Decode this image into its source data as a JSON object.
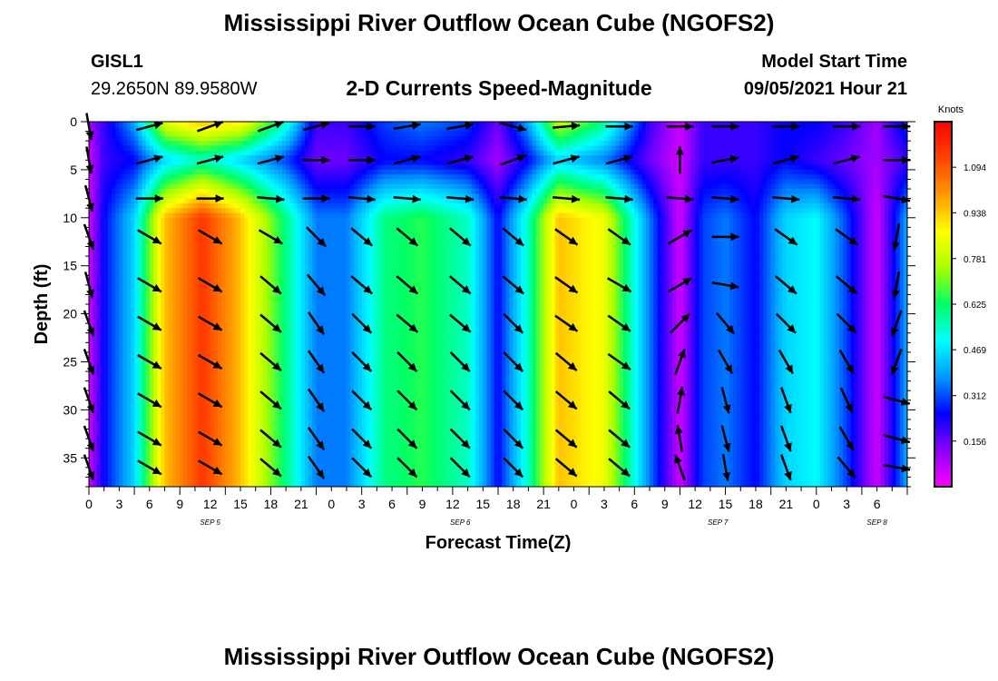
{
  "header": {
    "title": "Mississippi River Outflow Ocean Cube (NGOFS2)",
    "station_id": "GISL1",
    "station_coords": "29.2650N  89.9580W",
    "plot_title": "2-D Currents Speed-Magnitude",
    "model_start_label": "Model Start Time",
    "model_start_value": "09/05/2021 Hour 21"
  },
  "footer": {
    "title": "Mississippi River Outflow Ocean Cube (NGOFS2)"
  },
  "chart_data": {
    "type": "heatmap",
    "xlabel": "Forecast Time(Z)",
    "ylabel": "Depth (ft)",
    "xlim": [
      0,
      54
    ],
    "ylim": [
      0,
      38
    ],
    "y_inverted": true,
    "x_tick_labels": [
      "0",
      "3",
      "6",
      "9",
      "12",
      "15",
      "18",
      "21",
      "0",
      "3",
      "6",
      "9",
      "12",
      "15",
      "18",
      "21",
      "0",
      "3",
      "6",
      "9",
      "12",
      "15",
      "18",
      "21",
      "0",
      "3",
      "6"
    ],
    "y_ticks": [
      0,
      5,
      10,
      15,
      20,
      25,
      30,
      35
    ],
    "date_labels": [
      {
        "label": "SEP 5",
        "x": 8
      },
      {
        "label": "SEP 6",
        "x": 24.5
      },
      {
        "label": "SEP 7",
        "x": 41.5
      },
      {
        "label": "SEP 8",
        "x": 52
      }
    ],
    "colorbar": {
      "unit": "Knots",
      "min": 0,
      "max": 1.25,
      "ticks": [
        1.094,
        0.938,
        0.781,
        0.625,
        0.469,
        0.312,
        0.156
      ],
      "tick_labels": [
        "1.094",
        "0.938",
        "0.781",
        "0.625",
        "0.469",
        "0.312",
        "0.156"
      ],
      "colors": [
        "#ff00ff",
        "#8a00ff",
        "#0000ff",
        "#0099ff",
        "#00ffff",
        "#00ff66",
        "#aaff00",
        "#ffff00",
        "#ff9900",
        "#ff4400",
        "#ff0000"
      ]
    },
    "speed_profile": {
      "times": [
        0,
        1,
        3,
        5,
        7.5,
        10,
        13,
        15,
        17,
        19.5,
        22,
        25,
        27,
        29,
        31,
        34,
        37,
        39,
        40.5,
        42,
        44,
        46,
        48,
        50,
        52,
        54
      ],
      "surface": [
        0.1,
        0.2,
        0.4,
        0.85,
        0.95,
        0.9,
        0.55,
        0.2,
        0.2,
        0.3,
        0.35,
        0.3,
        0.15,
        0.4,
        0.8,
        0.6,
        0.2,
        0.05,
        0.2,
        0.2,
        0.2,
        0.25,
        0.25,
        0.2,
        0.1,
        0.3
      ],
      "mid": [
        0.05,
        0.2,
        0.25,
        0.45,
        0.55,
        0.45,
        0.3,
        0.15,
        0.15,
        0.25,
        0.25,
        0.2,
        0.1,
        0.25,
        0.45,
        0.35,
        0.15,
        0.05,
        0.2,
        0.2,
        0.2,
        0.25,
        0.2,
        0.15,
        0.1,
        0.2
      ],
      "deep": [
        0.05,
        0.25,
        0.45,
        0.95,
        1.15,
        0.95,
        0.6,
        0.35,
        0.35,
        0.6,
        0.65,
        0.55,
        0.25,
        0.55,
        0.95,
        0.85,
        0.35,
        0.05,
        0.3,
        0.35,
        0.25,
        0.45,
        0.5,
        0.3,
        0.05,
        0.4
      ]
    },
    "vectors": {
      "times": [
        0,
        4,
        8,
        12,
        15,
        18,
        21,
        24.5,
        28,
        31.5,
        35,
        39,
        42,
        46,
        50,
        53.3
      ],
      "depths": [
        0.5,
        4,
        8,
        12,
        17,
        21,
        25,
        29,
        33,
        36
      ],
      "directions_deg": [
        [
          -80,
          15,
          20,
          20,
          15,
          0,
          10,
          10,
          -15,
          5,
          0,
          0,
          0,
          0,
          0,
          0
        ],
        [
          -80,
          15,
          15,
          15,
          0,
          0,
          15,
          15,
          20,
          15,
          15,
          90,
          10,
          15,
          15,
          0
        ],
        [
          -75,
          0,
          0,
          -5,
          0,
          -5,
          -5,
          -5,
          -5,
          -5,
          -5,
          -5,
          -5,
          -5,
          -5,
          -10
        ],
        [
          -70,
          -30,
          -30,
          -30,
          -45,
          -40,
          -40,
          -40,
          -40,
          -35,
          -35,
          30,
          0,
          -35,
          -35,
          -100
        ],
        [
          -75,
          -30,
          -30,
          -40,
          -50,
          -40,
          -40,
          -40,
          -40,
          -35,
          -30,
          30,
          -10,
          -40,
          -40,
          -100
        ],
        [
          -70,
          -30,
          -30,
          -40,
          -55,
          -45,
          -40,
          -40,
          -45,
          -35,
          -35,
          45,
          -50,
          -45,
          -45,
          -110
        ],
        [
          -70,
          -30,
          -30,
          -40,
          -55,
          -45,
          -45,
          -45,
          -45,
          -40,
          -35,
          70,
          -60,
          -60,
          -60,
          -110
        ],
        [
          -70,
          -30,
          -30,
          -40,
          -55,
          -45,
          -45,
          -45,
          -45,
          -40,
          -40,
          80,
          -75,
          -70,
          -65,
          -15
        ],
        [
          -70,
          -30,
          -30,
          -40,
          -55,
          -45,
          -45,
          -45,
          -45,
          -40,
          -40,
          100,
          -75,
          -70,
          -60,
          -15
        ],
        [
          -70,
          -30,
          -30,
          -40,
          -55,
          -45,
          -45,
          -45,
          -45,
          -40,
          -40,
          110,
          -80,
          -70,
          -50,
          -10
        ]
      ]
    }
  }
}
